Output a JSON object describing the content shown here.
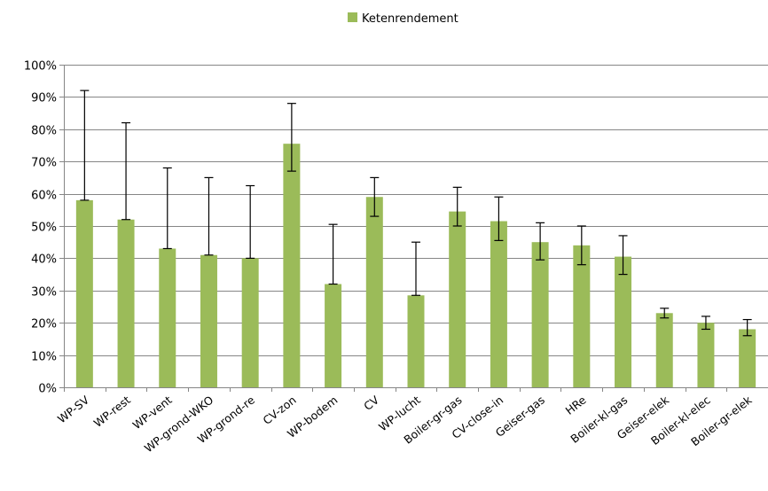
{
  "chart_data": {
    "type": "bar",
    "title": "",
    "xlabel": "",
    "ylabel": "",
    "ylim": [
      0,
      1
    ],
    "y_tick_step": 0.1,
    "y_tick_format": "percent",
    "grid": true,
    "legend_position": "top",
    "series": [
      {
        "name": "Ketenrendement",
        "color": "#9BBB59",
        "values": [
          0.58,
          0.52,
          0.43,
          0.41,
          0.4,
          0.755,
          0.32,
          0.59,
          0.285,
          0.545,
          0.515,
          0.45,
          0.44,
          0.405,
          0.23,
          0.2,
          0.18
        ],
        "error_high": [
          0.92,
          0.82,
          0.68,
          0.65,
          0.625,
          0.88,
          0.505,
          0.65,
          0.45,
          0.62,
          0.59,
          0.51,
          0.5,
          0.47,
          0.245,
          0.22,
          0.21
        ],
        "error_low": [
          0.58,
          0.52,
          0.43,
          0.41,
          0.4,
          0.67,
          0.32,
          0.53,
          0.285,
          0.5,
          0.455,
          0.395,
          0.38,
          0.35,
          0.215,
          0.18,
          0.16
        ]
      }
    ],
    "categories": [
      "WP-SV",
      "WP-rest",
      "WP-vent",
      "WP-grond-WKO",
      "WP-grond-re",
      "CV-zon",
      "WP-bodem",
      "CV",
      "WP-lucht",
      "Boiler-gr-gas",
      "CV-close-in",
      "Geiser-gas",
      "HRe",
      "Boiler-kl-gas",
      "Geiser-elek",
      "Boiler-kl-elec",
      "Boiler-gr-elek"
    ],
    "y_ticks": [
      "0%",
      "10%",
      "20%",
      "30%",
      "40%",
      "50%",
      "60%",
      "70%",
      "80%",
      "90%",
      "100%"
    ]
  },
  "colors": {
    "bar": "#9BBB59",
    "grid": "#868686",
    "axis": "#868686",
    "error": "#000000"
  }
}
